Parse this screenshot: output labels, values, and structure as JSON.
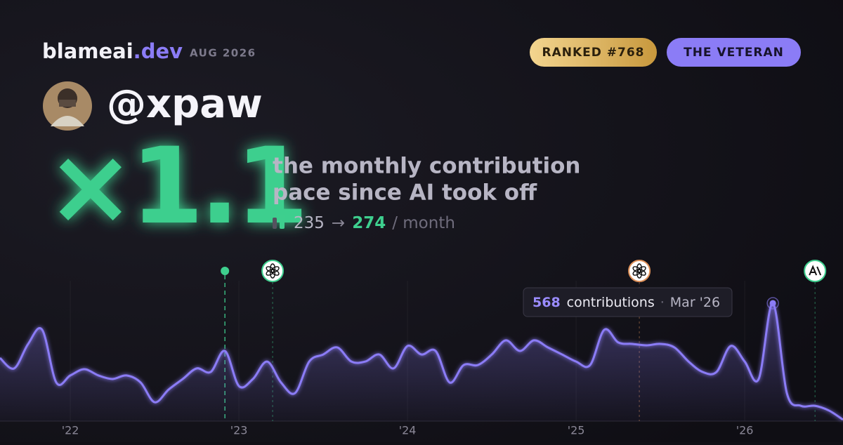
{
  "header": {
    "brand": "blameai",
    "brand_tld": ".dev",
    "period": "AUG 2026",
    "rank": "RANKED #768",
    "persona": "THE VETERAN",
    "handle": "@xpaw"
  },
  "summary": {
    "multiplier": "×1.1",
    "line1": "the monthly contribution",
    "line2": "pace since AI took off",
    "before": 235,
    "arrow": "→",
    "after": 274,
    "unit": "/ month"
  },
  "tooltip": {
    "label": "contributions",
    "separator": "·",
    "date": "Mar '26"
  },
  "chart_data": {
    "type": "area",
    "color": "#8b7cf6",
    "x": [
      2021.583,
      2021.667,
      2021.75,
      2021.833,
      2021.917,
      2022,
      2022.083,
      2022.167,
      2022.25,
      2022.333,
      2022.417,
      2022.5,
      2022.583,
      2022.667,
      2022.75,
      2022.833,
      2022.917,
      2023,
      2023.083,
      2023.167,
      2023.25,
      2023.333,
      2023.417,
      2023.5,
      2023.583,
      2023.667,
      2023.75,
      2023.833,
      2023.917,
      2024,
      2024.083,
      2024.167,
      2024.25,
      2024.333,
      2024.417,
      2024.5,
      2024.583,
      2024.667,
      2024.75,
      2024.833,
      2024.917,
      2025,
      2025.083,
      2025.167,
      2025.25,
      2025.333,
      2025.417,
      2025.5,
      2025.583,
      2025.667,
      2025.75,
      2025.833,
      2025.917,
      2026,
      2026.083,
      2026.167,
      2026.25,
      2026.333,
      2026.417,
      2026.5,
      2026.583
    ],
    "values": [
      304,
      254,
      372,
      440,
      186,
      220,
      250,
      220,
      203,
      220,
      186,
      91,
      152,
      203,
      254,
      237,
      338,
      169,
      203,
      287,
      186,
      135,
      287,
      321,
      355,
      287,
      287,
      321,
      254,
      362,
      321,
      338,
      186,
      270,
      270,
      321,
      389,
      338,
      389,
      355,
      321,
      287,
      270,
      440,
      379,
      372,
      365,
      372,
      355,
      287,
      237,
      237,
      362,
      287,
      203,
      568,
      135,
      74,
      74,
      51,
      7
    ],
    "xlim": [
      2021.583,
      2026.583
    ],
    "ylim": [
      0,
      600
    ],
    "xticks": [
      {
        "value": 2022,
        "label": "'22"
      },
      {
        "value": 2023,
        "label": "'23"
      },
      {
        "value": 2024,
        "label": "'24"
      },
      {
        "value": 2025,
        "label": "'25"
      },
      {
        "value": 2026,
        "label": "'26"
      }
    ],
    "grid": true,
    "events": [
      {
        "x": 2022.917,
        "marker": "dot",
        "color": "#3ecf8e"
      },
      {
        "x": 2023.2,
        "marker": "openai",
        "color": "#3ecf8e"
      },
      {
        "x": 2025.375,
        "marker": "openai",
        "color": "#e0925a"
      },
      {
        "x": 2026.417,
        "marker": "anthropic",
        "color": "#3ecf8e"
      }
    ],
    "highlight_index": 55
  }
}
